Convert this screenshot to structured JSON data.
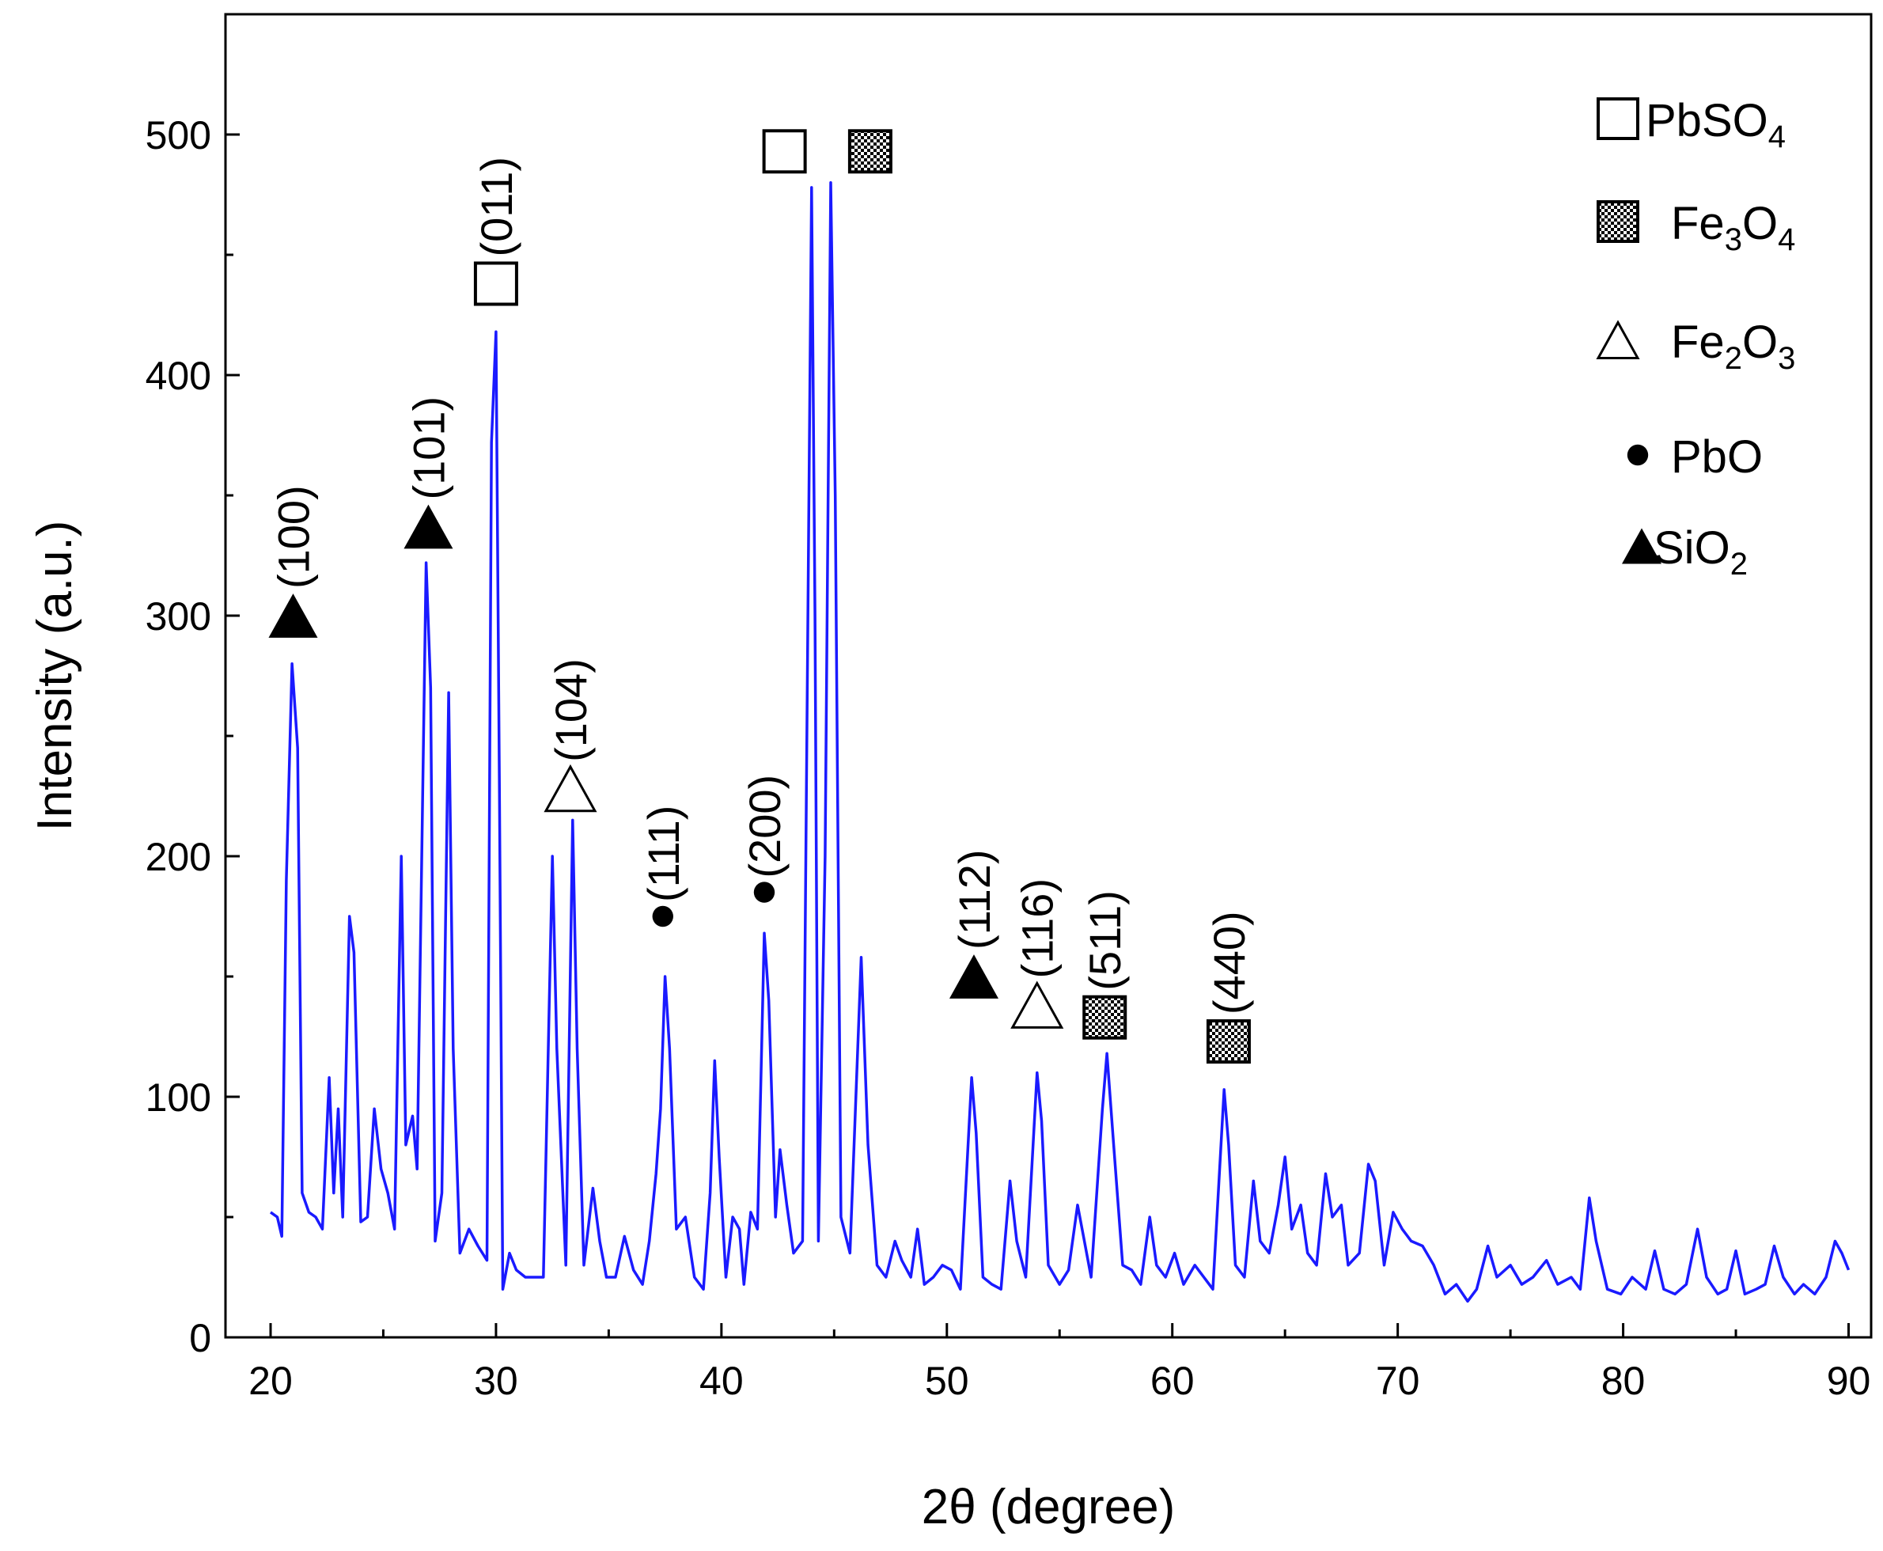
{
  "chart_data": {
    "type": "line",
    "xlabel": "2θ (degree)",
    "ylabel": "Intensity (a.u.)",
    "xlim": [
      18,
      91
    ],
    "ylim": [
      0,
      550
    ],
    "x_ticks": [
      "20",
      "30",
      "40",
      "50",
      "60",
      "70",
      "80",
      "90"
    ],
    "y_ticks": [
      "0",
      "100",
      "200",
      "300",
      "400",
      "500"
    ],
    "series_color": "#1a1aff",
    "series": [
      {
        "name": "XRD pattern",
        "points": [
          [
            20.0,
            52
          ],
          [
            20.3,
            50
          ],
          [
            20.5,
            42
          ],
          [
            20.7,
            190
          ],
          [
            20.95,
            280
          ],
          [
            21.2,
            245
          ],
          [
            21.4,
            60
          ],
          [
            21.7,
            52
          ],
          [
            22.0,
            50
          ],
          [
            22.3,
            45
          ],
          [
            22.6,
            108
          ],
          [
            22.8,
            60
          ],
          [
            23.0,
            95
          ],
          [
            23.2,
            50
          ],
          [
            23.5,
            175
          ],
          [
            23.7,
            160
          ],
          [
            24.0,
            48
          ],
          [
            24.3,
            50
          ],
          [
            24.6,
            95
          ],
          [
            24.9,
            70
          ],
          [
            25.2,
            60
          ],
          [
            25.5,
            45
          ],
          [
            25.8,
            200
          ],
          [
            26.0,
            80
          ],
          [
            26.3,
            92
          ],
          [
            26.5,
            70
          ],
          [
            26.9,
            322
          ],
          [
            27.1,
            270
          ],
          [
            27.3,
            40
          ],
          [
            27.6,
            60
          ],
          [
            27.9,
            268
          ],
          [
            28.1,
            120
          ],
          [
            28.4,
            35
          ],
          [
            28.8,
            45
          ],
          [
            29.2,
            38
          ],
          [
            29.6,
            32
          ],
          [
            29.8,
            372
          ],
          [
            30.0,
            418
          ],
          [
            30.15,
            230
          ],
          [
            30.3,
            20
          ],
          [
            30.6,
            35
          ],
          [
            30.9,
            28
          ],
          [
            31.3,
            25
          ],
          [
            31.7,
            25
          ],
          [
            32.1,
            25
          ],
          [
            32.5,
            200
          ],
          [
            32.7,
            120
          ],
          [
            33.1,
            30
          ],
          [
            33.4,
            215
          ],
          [
            33.6,
            120
          ],
          [
            33.9,
            30
          ],
          [
            34.3,
            62
          ],
          [
            34.6,
            40
          ],
          [
            34.9,
            25
          ],
          [
            35.3,
            25
          ],
          [
            35.7,
            42
          ],
          [
            36.1,
            28
          ],
          [
            36.5,
            22
          ],
          [
            36.8,
            40
          ],
          [
            37.1,
            68
          ],
          [
            37.3,
            95
          ],
          [
            37.5,
            150
          ],
          [
            37.7,
            120
          ],
          [
            38.0,
            45
          ],
          [
            38.4,
            50
          ],
          [
            38.8,
            25
          ],
          [
            39.2,
            20
          ],
          [
            39.5,
            60
          ],
          [
            39.7,
            115
          ],
          [
            39.9,
            75
          ],
          [
            40.2,
            25
          ],
          [
            40.5,
            50
          ],
          [
            40.8,
            45
          ],
          [
            41.0,
            22
          ],
          [
            41.3,
            52
          ],
          [
            41.6,
            45
          ],
          [
            41.9,
            168
          ],
          [
            42.1,
            140
          ],
          [
            42.4,
            50
          ],
          [
            42.6,
            78
          ],
          [
            42.9,
            55
          ],
          [
            43.2,
            35
          ],
          [
            43.6,
            40
          ],
          [
            43.8,
            260
          ],
          [
            44.0,
            478
          ],
          [
            44.15,
            300
          ],
          [
            44.3,
            40
          ],
          [
            44.6,
            200
          ],
          [
            44.85,
            480
          ],
          [
            45.05,
            350
          ],
          [
            45.3,
            50
          ],
          [
            45.7,
            35
          ],
          [
            46.2,
            158
          ],
          [
            46.5,
            80
          ],
          [
            46.9,
            30
          ],
          [
            47.3,
            25
          ],
          [
            47.7,
            40
          ],
          [
            48.0,
            32
          ],
          [
            48.4,
            25
          ],
          [
            48.7,
            45
          ],
          [
            49.0,
            22
          ],
          [
            49.4,
            25
          ],
          [
            49.8,
            30
          ],
          [
            50.2,
            28
          ],
          [
            50.6,
            20
          ],
          [
            51.1,
            108
          ],
          [
            51.3,
            85
          ],
          [
            51.6,
            25
          ],
          [
            52.0,
            22
          ],
          [
            52.4,
            20
          ],
          [
            52.8,
            65
          ],
          [
            53.1,
            40
          ],
          [
            53.5,
            25
          ],
          [
            54.0,
            110
          ],
          [
            54.2,
            90
          ],
          [
            54.5,
            30
          ],
          [
            55.0,
            22
          ],
          [
            55.4,
            28
          ],
          [
            55.8,
            55
          ],
          [
            56.1,
            40
          ],
          [
            56.4,
            25
          ],
          [
            56.9,
            95
          ],
          [
            57.1,
            118
          ],
          [
            57.4,
            80
          ],
          [
            57.8,
            30
          ],
          [
            58.2,
            28
          ],
          [
            58.6,
            22
          ],
          [
            59.0,
            50
          ],
          [
            59.3,
            30
          ],
          [
            59.7,
            25
          ],
          [
            60.1,
            35
          ],
          [
            60.5,
            22
          ],
          [
            61.0,
            30
          ],
          [
            61.4,
            25
          ],
          [
            61.8,
            20
          ],
          [
            62.3,
            103
          ],
          [
            62.5,
            80
          ],
          [
            62.8,
            30
          ],
          [
            63.2,
            25
          ],
          [
            63.6,
            65
          ],
          [
            63.9,
            40
          ],
          [
            64.3,
            35
          ],
          [
            64.7,
            55
          ],
          [
            65.0,
            75
          ],
          [
            65.3,
            45
          ],
          [
            65.7,
            55
          ],
          [
            66.0,
            35
          ],
          [
            66.4,
            30
          ],
          [
            66.8,
            68
          ],
          [
            67.1,
            50
          ],
          [
            67.5,
            55
          ],
          [
            67.8,
            30
          ],
          [
            68.3,
            35
          ],
          [
            68.7,
            72
          ],
          [
            69.0,
            65
          ],
          [
            69.4,
            30
          ],
          [
            69.8,
            52
          ],
          [
            70.2,
            45
          ],
          [
            70.6,
            40
          ],
          [
            71.1,
            38
          ],
          [
            71.6,
            30
          ],
          [
            72.1,
            18
          ],
          [
            72.6,
            22
          ],
          [
            73.1,
            15
          ],
          [
            73.5,
            20
          ],
          [
            74.0,
            38
          ],
          [
            74.4,
            25
          ],
          [
            75.0,
            30
          ],
          [
            75.5,
            22
          ],
          [
            76.0,
            25
          ],
          [
            76.6,
            32
          ],
          [
            77.1,
            22
          ],
          [
            77.7,
            25
          ],
          [
            78.1,
            20
          ],
          [
            78.5,
            58
          ],
          [
            78.8,
            40
          ],
          [
            79.3,
            20
          ],
          [
            79.9,
            18
          ],
          [
            80.4,
            25
          ],
          [
            81.0,
            20
          ],
          [
            81.4,
            36
          ],
          [
            81.8,
            20
          ],
          [
            82.3,
            18
          ],
          [
            82.8,
            22
          ],
          [
            83.3,
            45
          ],
          [
            83.7,
            25
          ],
          [
            84.2,
            18
          ],
          [
            84.6,
            20
          ],
          [
            85.0,
            36
          ],
          [
            85.4,
            18
          ],
          [
            85.9,
            20
          ],
          [
            86.3,
            22
          ],
          [
            86.7,
            38
          ],
          [
            87.1,
            25
          ],
          [
            87.6,
            18
          ],
          [
            88.0,
            22
          ],
          [
            88.5,
            18
          ],
          [
            89.0,
            25
          ],
          [
            89.4,
            40
          ],
          [
            89.7,
            35
          ],
          [
            90.0,
            28
          ]
        ]
      }
    ],
    "peak_labels": [
      {
        "x": 21.0,
        "y": 300,
        "marker": "filled-triangle",
        "hkl": "(100)"
      },
      {
        "x": 27.0,
        "y": 337,
        "marker": "filled-triangle",
        "hkl": "(101)"
      },
      {
        "x": 30.0,
        "y": 438,
        "marker": "open-square",
        "hkl": "(011)"
      },
      {
        "x": 33.3,
        "y": 228,
        "marker": "open-triangle",
        "hkl": "(104)"
      },
      {
        "x": 37.4,
        "y": 175,
        "marker": "filled-circle",
        "hkl": "(111)"
      },
      {
        "x": 41.9,
        "y": 185,
        "marker": "filled-circle",
        "hkl": "(200)"
      },
      {
        "x": 51.2,
        "y": 150,
        "marker": "filled-triangle",
        "hkl": "(112)"
      },
      {
        "x": 54.0,
        "y": 138,
        "marker": "open-triangle",
        "hkl": "(116)"
      },
      {
        "x": 57.0,
        "y": 133,
        "marker": "checker-square",
        "hkl": "(511)"
      },
      {
        "x": 62.5,
        "y": 123,
        "marker": "checker-square",
        "hkl": "(440)"
      },
      {
        "x": 42.8,
        "y": 493,
        "marker": "open-square",
        "hkl": ""
      },
      {
        "x": 46.6,
        "y": 493,
        "marker": "checker-square",
        "hkl": ""
      }
    ],
    "legend": {
      "placement": "top-right",
      "entries": [
        {
          "marker": "open-square",
          "text": "PbSO",
          "sub": "4"
        },
        {
          "marker": "checker-square",
          "text": "Fe",
          "sub": "3",
          "text2": "O",
          "sub2": "4"
        },
        {
          "marker": "open-triangle",
          "text": "Fe",
          "sub": "2",
          "text2": "O",
          "sub2": "3"
        },
        {
          "marker": "filled-circle",
          "text": "PbO",
          "sub": ""
        },
        {
          "marker": "filled-triangle",
          "text": "SiO",
          "sub": "2"
        }
      ]
    }
  }
}
